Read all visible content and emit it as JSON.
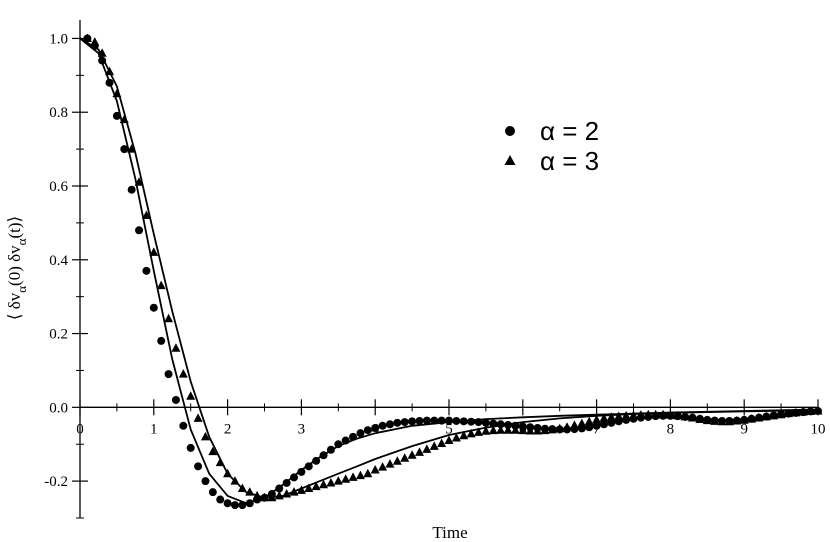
{
  "chart_data": {
    "type": "scatter",
    "title": "",
    "xlabel": "Time",
    "ylabel": "⟨ δv_α(0) δv_α(t)⟩",
    "ylabel_parts": {
      "open": "⟨ δv",
      "sub1": "α",
      "mid": "(0) δv",
      "sub2": "α",
      "close": "(t)⟩"
    },
    "xlim": [
      0,
      10
    ],
    "ylim": [
      -0.3,
      1.05
    ],
    "x_ticks": [
      0,
      1,
      2,
      3,
      4,
      5,
      6,
      7,
      8,
      9,
      10
    ],
    "x_tick_labels": [
      "0",
      "1",
      "2",
      "3",
      "4",
      "5",
      "6",
      "7",
      "8",
      "9",
      "10"
    ],
    "y_ticks": [
      -0.2,
      0.0,
      0.2,
      0.4,
      0.6,
      0.8,
      1.0
    ],
    "y_tick_labels": [
      "-0.2",
      "0.0",
      "0.2",
      "0.4",
      "0.6",
      "0.8",
      "1.0"
    ],
    "grid": false,
    "legend_position": "top-right",
    "series": [
      {
        "name": "α = 2",
        "marker": "circle",
        "x": [
          0.1,
          0.2,
          0.3,
          0.4,
          0.5,
          0.6,
          0.7,
          0.8,
          0.9,
          1.0,
          1.1,
          1.2,
          1.3,
          1.4,
          1.5,
          1.6,
          1.7,
          1.8,
          1.9,
          2.0,
          2.1,
          2.2,
          2.3,
          2.4,
          2.5,
          2.6,
          2.7,
          2.8,
          2.9,
          3.0,
          3.1,
          3.2,
          3.3,
          3.4,
          3.5,
          3.6,
          3.7,
          3.8,
          3.9,
          4.0,
          4.1,
          4.2,
          4.3,
          4.4,
          4.5,
          4.6,
          4.7,
          4.8,
          4.9,
          5.0,
          5.1,
          5.2,
          5.3,
          5.4,
          5.5,
          5.6,
          5.7,
          5.8,
          5.9,
          6.0,
          6.1,
          6.2,
          6.3,
          6.4,
          6.5,
          6.6,
          6.7,
          6.8,
          6.9,
          7.0,
          7.1,
          7.2,
          7.3,
          7.4,
          7.5,
          7.6,
          7.7,
          7.8,
          7.9,
          8.0,
          8.1,
          8.2,
          8.3,
          8.4,
          8.5,
          8.6,
          8.7,
          8.8,
          8.9,
          9.0,
          9.1,
          9.2,
          9.3,
          9.4,
          9.5,
          9.6,
          9.7,
          9.8,
          9.9,
          10.0
        ],
        "y": [
          1.0,
          0.98,
          0.94,
          0.88,
          0.79,
          0.7,
          0.59,
          0.48,
          0.37,
          0.27,
          0.18,
          0.09,
          0.02,
          -0.05,
          -0.11,
          -0.16,
          -0.2,
          -0.23,
          -0.25,
          -0.26,
          -0.265,
          -0.265,
          -0.26,
          -0.25,
          -0.245,
          -0.235,
          -0.22,
          -0.205,
          -0.19,
          -0.175,
          -0.16,
          -0.145,
          -0.13,
          -0.115,
          -0.1,
          -0.09,
          -0.08,
          -0.07,
          -0.062,
          -0.056,
          -0.05,
          -0.046,
          -0.042,
          -0.04,
          -0.038,
          -0.037,
          -0.036,
          -0.036,
          -0.036,
          -0.036,
          -0.037,
          -0.038,
          -0.039,
          -0.04,
          -0.042,
          -0.044,
          -0.046,
          -0.048,
          -0.05,
          -0.052,
          -0.054,
          -0.056,
          -0.058,
          -0.059,
          -0.06,
          -0.06,
          -0.059,
          -0.057,
          -0.054,
          -0.05,
          -0.046,
          -0.042,
          -0.038,
          -0.034,
          -0.031,
          -0.028,
          -0.026,
          -0.024,
          -0.023,
          -0.023,
          -0.024,
          -0.026,
          -0.028,
          -0.031,
          -0.034,
          -0.036,
          -0.037,
          -0.037,
          -0.036,
          -0.034,
          -0.031,
          -0.028,
          -0.025,
          -0.022,
          -0.019,
          -0.017,
          -0.015,
          -0.013,
          -0.011,
          -0.01
        ]
      },
      {
        "name": "α = 3",
        "marker": "triangle",
        "x": [
          0.1,
          0.2,
          0.3,
          0.4,
          0.5,
          0.6,
          0.7,
          0.8,
          0.9,
          1.0,
          1.1,
          1.2,
          1.3,
          1.4,
          1.5,
          1.6,
          1.7,
          1.8,
          1.9,
          2.0,
          2.1,
          2.2,
          2.3,
          2.4,
          2.5,
          2.6,
          2.7,
          2.8,
          2.9,
          3.0,
          3.1,
          3.2,
          3.3,
          3.4,
          3.5,
          3.6,
          3.7,
          3.8,
          3.9,
          4.0,
          4.1,
          4.2,
          4.3,
          4.4,
          4.5,
          4.6,
          4.7,
          4.8,
          4.9,
          5.0,
          5.1,
          5.2,
          5.3,
          5.4,
          5.5,
          5.6,
          5.7,
          5.8,
          5.9,
          6.0,
          6.1,
          6.2,
          6.3,
          6.4,
          6.5,
          6.6,
          6.7,
          6.8,
          6.9,
          7.0,
          7.1,
          7.2,
          7.3,
          7.4,
          7.5,
          7.6,
          7.7,
          7.8,
          7.9,
          8.0,
          8.1,
          8.2,
          8.3,
          8.4,
          8.5,
          8.6,
          8.7,
          8.8,
          8.9,
          9.0,
          9.1,
          9.2,
          9.3,
          9.4,
          9.5,
          9.6,
          9.7,
          9.8,
          9.9,
          10.0
        ],
        "y": [
          1.0,
          0.99,
          0.96,
          0.91,
          0.85,
          0.78,
          0.7,
          0.61,
          0.52,
          0.42,
          0.33,
          0.24,
          0.16,
          0.09,
          0.03,
          -0.03,
          -0.08,
          -0.12,
          -0.15,
          -0.18,
          -0.2,
          -0.22,
          -0.23,
          -0.24,
          -0.245,
          -0.245,
          -0.24,
          -0.235,
          -0.23,
          -0.225,
          -0.22,
          -0.215,
          -0.21,
          -0.205,
          -0.2,
          -0.195,
          -0.19,
          -0.185,
          -0.18,
          -0.17,
          -0.162,
          -0.154,
          -0.146,
          -0.138,
          -0.13,
          -0.122,
          -0.114,
          -0.106,
          -0.098,
          -0.09,
          -0.083,
          -0.077,
          -0.072,
          -0.068,
          -0.065,
          -0.063,
          -0.062,
          -0.062,
          -0.062,
          -0.063,
          -0.064,
          -0.064,
          -0.063,
          -0.061,
          -0.058,
          -0.054,
          -0.049,
          -0.044,
          -0.039,
          -0.034,
          -0.03,
          -0.027,
          -0.025,
          -0.023,
          -0.022,
          -0.021,
          -0.02,
          -0.02,
          -0.02,
          -0.021,
          -0.023,
          -0.026,
          -0.029,
          -0.033,
          -0.036,
          -0.038,
          -0.039,
          -0.039,
          -0.037,
          -0.035,
          -0.032,
          -0.029,
          -0.026,
          -0.023,
          -0.02,
          -0.017,
          -0.015,
          -0.013,
          -0.011,
          -0.01
        ]
      },
      {
        "name": "",
        "marker": "none",
        "line": true,
        "x": [
          0,
          0.25,
          0.5,
          0.75,
          1.0,
          1.25,
          1.5,
          1.75,
          2.0,
          2.25,
          2.5,
          2.75,
          3.0,
          3.25,
          3.5,
          3.75,
          4.0,
          4.5,
          5.0,
          5.5,
          6.0,
          6.5,
          7.0,
          7.5,
          8.0,
          8.5,
          9.0,
          9.5,
          10.0
        ],
        "y": [
          1.0,
          0.96,
          0.83,
          0.62,
          0.37,
          0.13,
          -0.06,
          -0.18,
          -0.24,
          -0.26,
          -0.245,
          -0.21,
          -0.17,
          -0.135,
          -0.105,
          -0.085,
          -0.07,
          -0.05,
          -0.04,
          -0.032,
          -0.027,
          -0.023,
          -0.02,
          -0.017,
          -0.014,
          -0.012,
          -0.01,
          -0.008,
          -0.006
        ]
      },
      {
        "name": "",
        "marker": "none",
        "line": true,
        "x": [
          0,
          0.25,
          0.5,
          0.75,
          1.0,
          1.25,
          1.5,
          1.75,
          2.0,
          2.25,
          2.5,
          2.75,
          3.0,
          3.25,
          3.5,
          3.75,
          4.0,
          4.5,
          5.0,
          5.5,
          6.0,
          6.5,
          7.0,
          7.5,
          8.0,
          8.5,
          9.0,
          9.5,
          10.0
        ],
        "y": [
          1.0,
          0.97,
          0.87,
          0.69,
          0.47,
          0.26,
          0.07,
          -0.08,
          -0.18,
          -0.23,
          -0.245,
          -0.24,
          -0.22,
          -0.2,
          -0.18,
          -0.16,
          -0.14,
          -0.105,
          -0.075,
          -0.055,
          -0.04,
          -0.03,
          -0.023,
          -0.018,
          -0.015,
          -0.013,
          -0.011,
          -0.009,
          -0.007
        ]
      }
    ],
    "legend": [
      {
        "label": "α = 2",
        "marker": "circle"
      },
      {
        "label": "α = 3",
        "marker": "triangle"
      }
    ]
  }
}
